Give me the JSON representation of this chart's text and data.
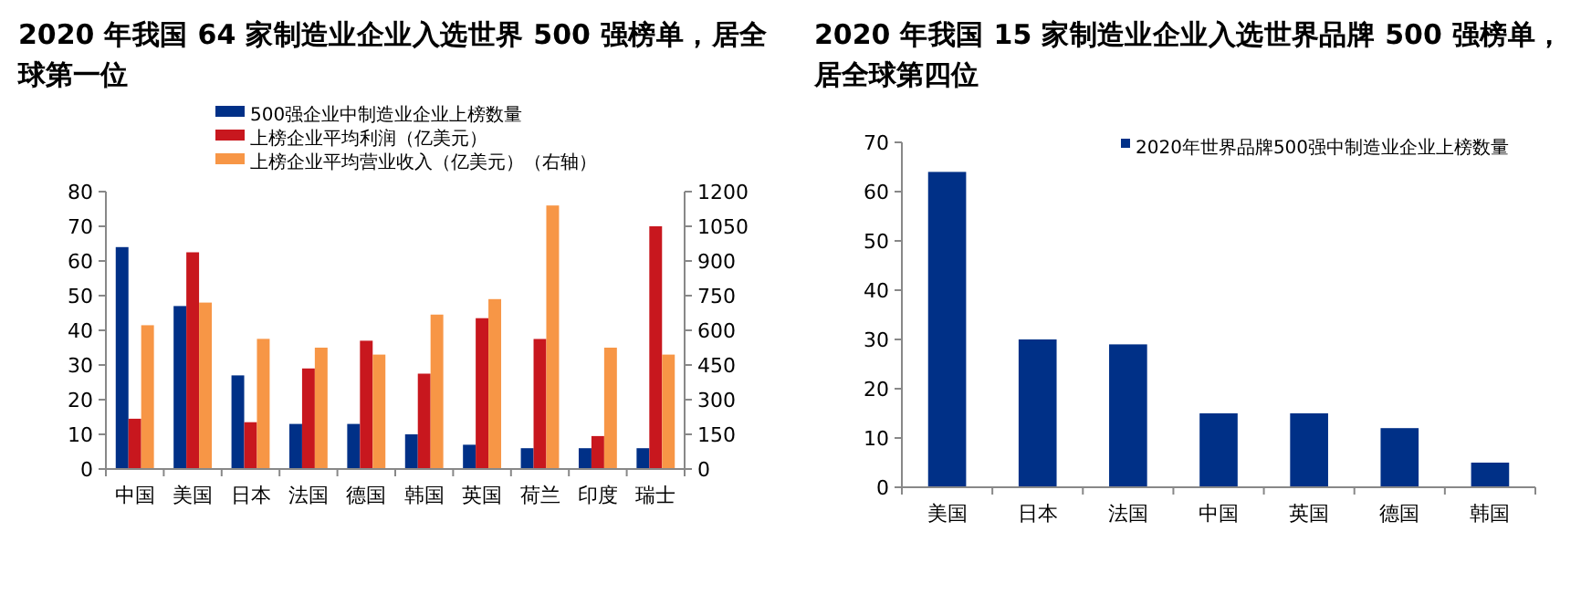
{
  "chart_data": [
    {
      "type": "bar",
      "title": "2020 年我国 64 家制造业企业入选世界 500 强榜单，居全球第一位",
      "categories": [
        "中国",
        "美国",
        "日本",
        "法国",
        "德国",
        "韩国",
        "英国",
        "荷兰",
        "印度",
        "瑞士"
      ],
      "series": [
        {
          "name": "500强企业中制造业企业上榜数量",
          "color": "#003087",
          "values": [
            64,
            47,
            27,
            13,
            13,
            10,
            7,
            6,
            6,
            6
          ]
        },
        {
          "name": "上榜企业平均利润（亿美元）",
          "color": "#c8171e",
          "values": [
            14.5,
            62.5,
            13.5,
            29,
            37,
            27.5,
            43.5,
            37.5,
            9.5,
            70
          ]
        },
        {
          "name": "上榜企业平均营业收入（亿美元）（右轴）",
          "color": "#f79646",
          "axis": "y2",
          "values": [
            622,
            720,
            563,
            525,
            495,
            668,
            735,
            1140,
            525,
            495
          ]
        }
      ],
      "ylim": [
        0,
        80
      ],
      "yticks": [
        0,
        10,
        20,
        30,
        40,
        50,
        60,
        70,
        80
      ],
      "y2lim": [
        0,
        1200
      ],
      "y2ticks": [
        0,
        150,
        300,
        450,
        600,
        750,
        900,
        1050,
        1200
      ],
      "legend": "top",
      "grid": false
    },
    {
      "type": "bar",
      "title": "2020 年我国 15 家制造业企业入选世界品牌 500 强榜单，居全球第四位",
      "categories": [
        "美国",
        "日本",
        "法国",
        "中国",
        "英国",
        "德国",
        "韩国"
      ],
      "series": [
        {
          "name": "2020年世界品牌500强中制造业企业上榜数量",
          "color": "#003087",
          "values": [
            64,
            30,
            29,
            15,
            15,
            12,
            5
          ]
        }
      ],
      "ylim": [
        0,
        70
      ],
      "yticks": [
        0,
        10,
        20,
        30,
        40,
        50,
        60,
        70
      ],
      "legend": "top",
      "grid": false
    }
  ]
}
